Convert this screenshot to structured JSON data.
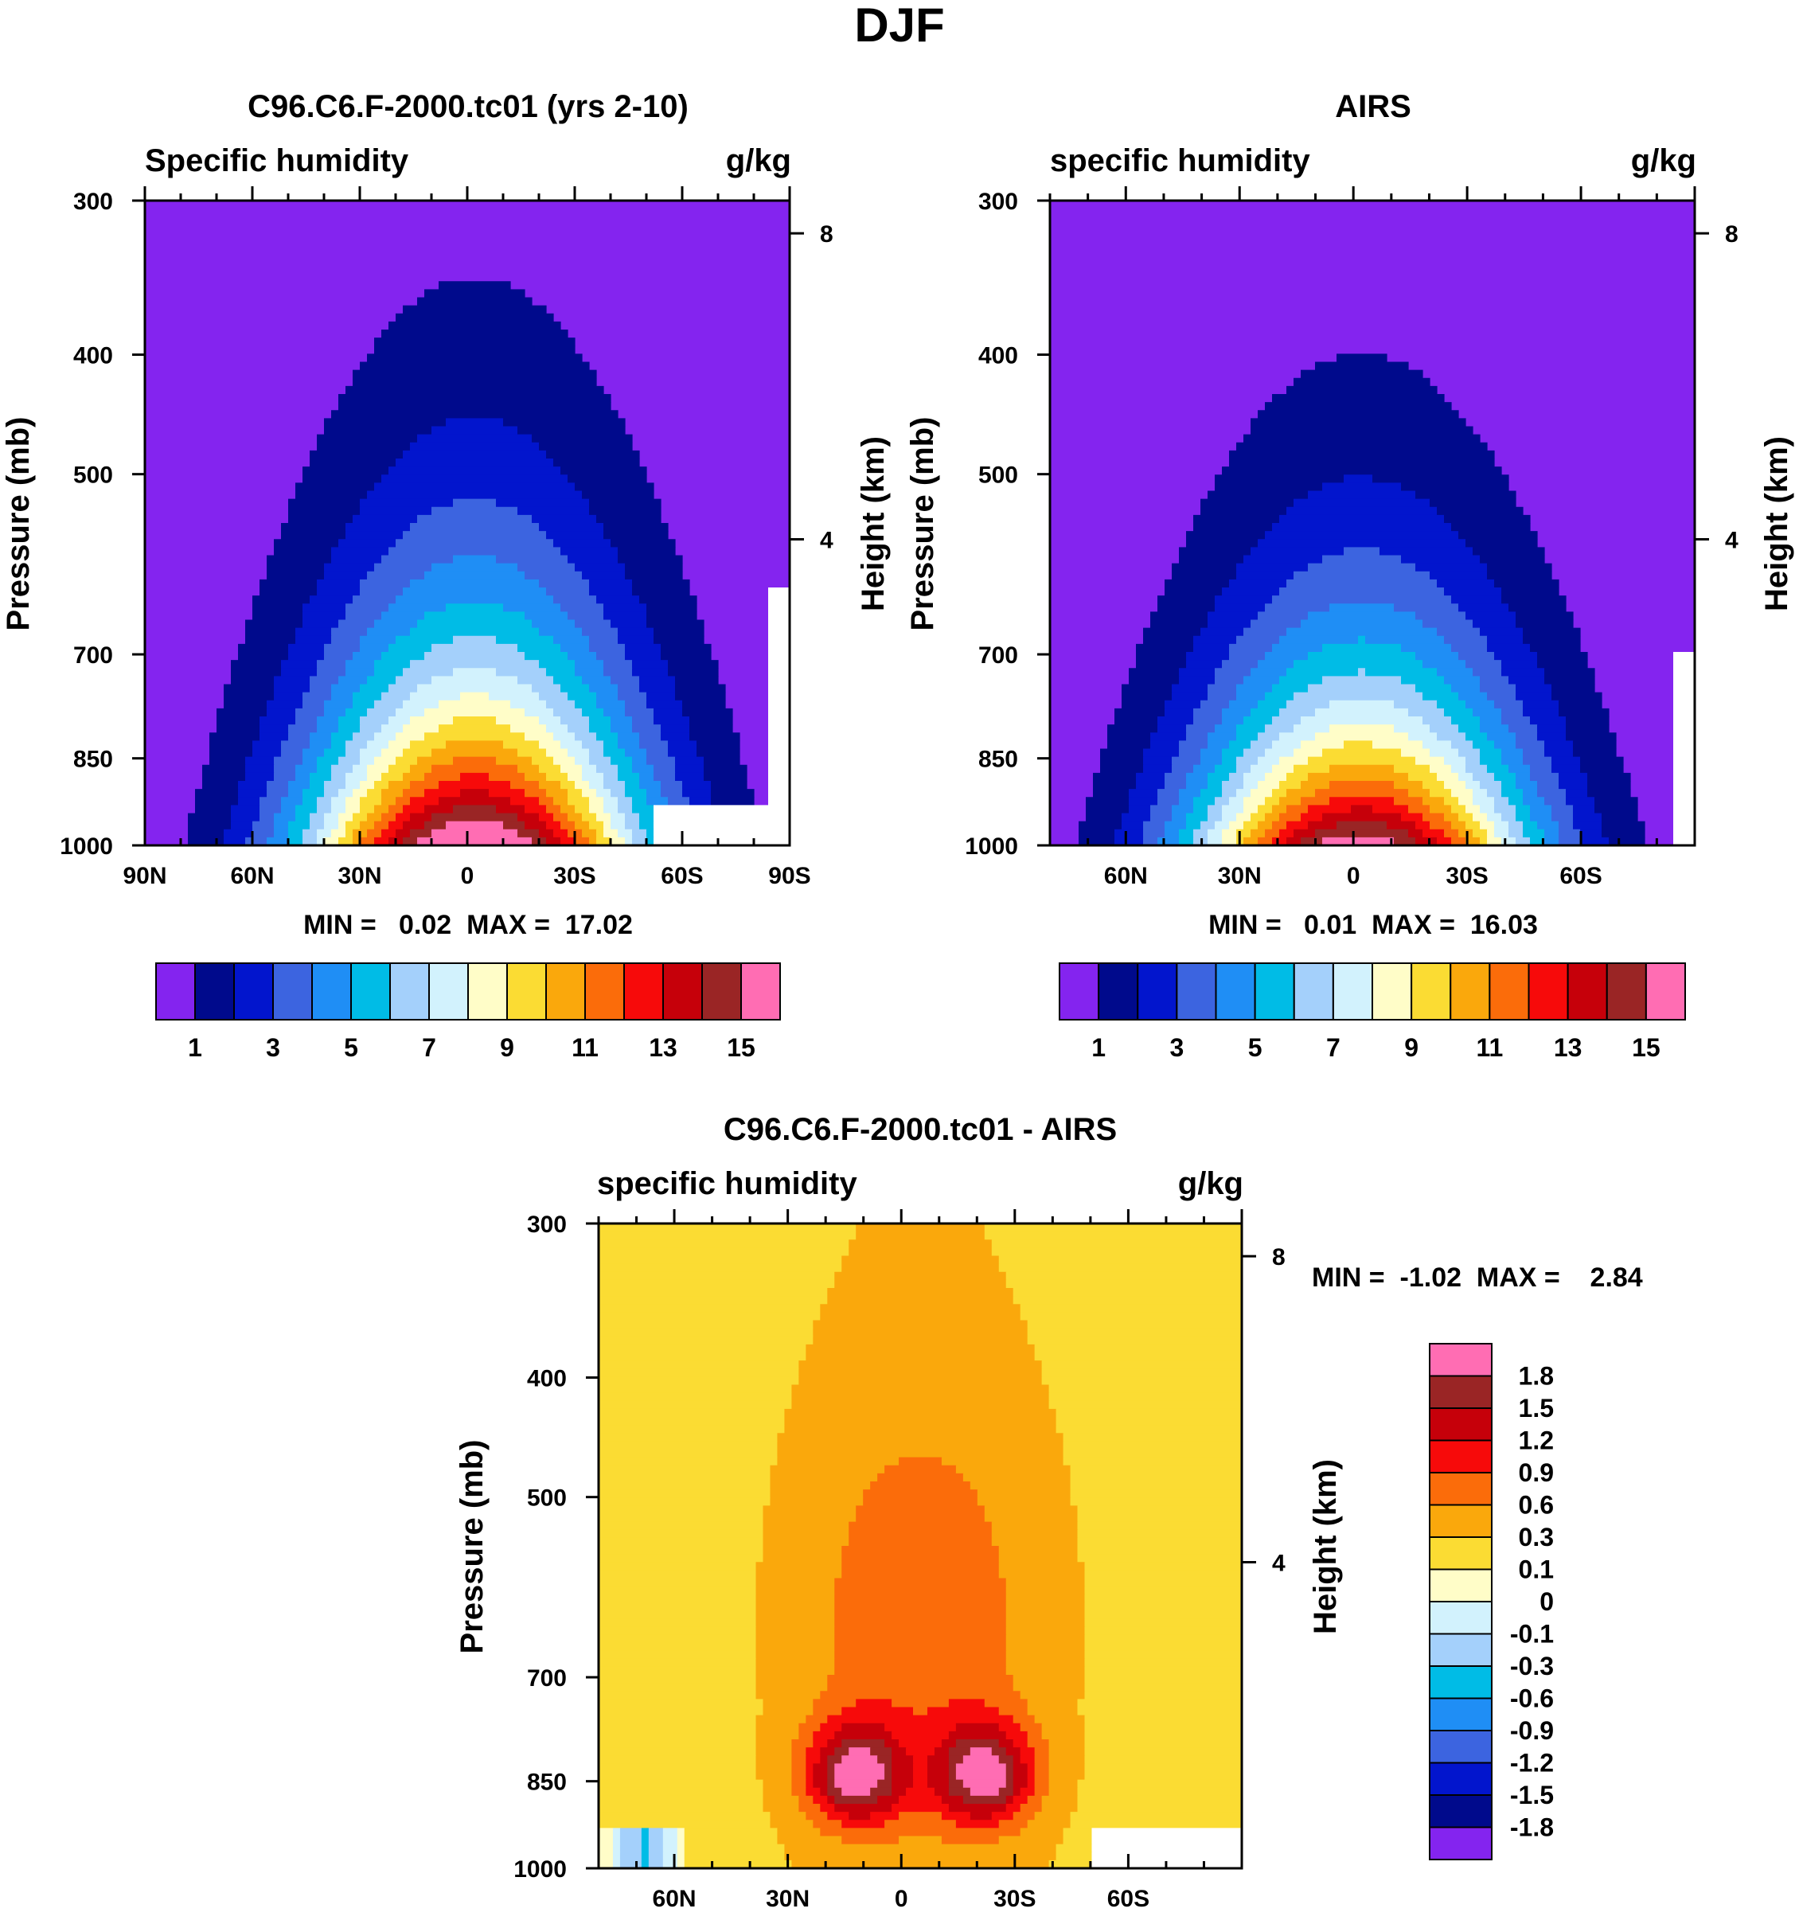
{
  "page": {
    "title": "DJF"
  },
  "colors": {
    "abs_levels": [
      "#8424ef",
      "#000a8c",
      "#0215cd",
      "#3c64e0",
      "#1f8ef5",
      "#00bce6",
      "#a4d0fb",
      "#d2f2fd",
      "#fffdc8",
      "#fbdc33",
      "#faa80c",
      "#fb6c0a",
      "#f70a0a",
      "#c6000a",
      "#9a2525",
      "#ff6db3"
    ],
    "diff_levels": [
      "#8424ef",
      "#000a8c",
      "#0215cd",
      "#3c64e0",
      "#1f8ef5",
      "#00bce6",
      "#a4d0fb",
      "#d2f2fd",
      "#fffdc8",
      "#fbdc33",
      "#faa80c",
      "#fb6c0a",
      "#f70a0a",
      "#c6000a",
      "#9a2525",
      "#ff6db3"
    ]
  },
  "chart_data": [
    {
      "id": "model",
      "type": "heatmap",
      "title": "C96.C6.F-2000.tc01 (yrs 2-10)",
      "left_label": "Specific humidity",
      "units": "g/kg",
      "ylabel": "Pressure (mb)",
      "y2label": "Height (km)",
      "x_ticks": [
        "90N",
        "60N",
        "30N",
        "0",
        "30S",
        "60S",
        "90S"
      ],
      "x_tick_lats": [
        90,
        60,
        30,
        0,
        -30,
        -60,
        -90
      ],
      "y_ticks": [
        "300",
        "400",
        "500",
        "700",
        "850",
        "1000"
      ],
      "y_tick_values": [
        300,
        400,
        500,
        700,
        850,
        1000
      ],
      "y2_ticks": [
        "8",
        "4"
      ],
      "y2_tick_values": [
        8,
        4
      ],
      "min_text": "MIN =   0.02  MAX =  17.02",
      "min": 0.02,
      "max": 17.02,
      "colorbar_labels": [
        "1",
        "3",
        "5",
        "7",
        "9",
        "11",
        "13",
        "15"
      ],
      "peak": 17.02,
      "peak_lat": -2,
      "scale_height_km": 2.6,
      "width_deg": 34,
      "masked_regions": [
        {
          "lat_from": -52,
          "lat_to": -90,
          "p_from": 925
        },
        {
          "lat_from": -85,
          "lat_to": -90,
          "p_from": 620
        }
      ]
    },
    {
      "id": "obs",
      "type": "heatmap",
      "title": "AIRS",
      "left_label": "specific humidity",
      "units": "g/kg",
      "ylabel": "Pressure (mb)",
      "y2label": "Height (km)",
      "x_ticks": [
        "60N",
        "30N",
        "0",
        "30S",
        "60S"
      ],
      "x_tick_lats": [
        60,
        30,
        0,
        -30,
        -60
      ],
      "y_ticks": [
        "300",
        "400",
        "500",
        "700",
        "850",
        "1000"
      ],
      "y_tick_values": [
        300,
        400,
        500,
        700,
        850,
        1000
      ],
      "y2_ticks": [
        "8",
        "4"
      ],
      "y2_tick_values": [
        8,
        4
      ],
      "min_text": "MIN =   0.01  MAX =  16.03",
      "min": 0.01,
      "max": 16.03,
      "colorbar_labels": [
        "1",
        "3",
        "5",
        "7",
        "9",
        "11",
        "13",
        "15"
      ],
      "peak": 16.03,
      "peak_lat": -2,
      "scale_height_km": 2.3,
      "width_deg": 32,
      "masked_regions": [
        {
          "lat_from": -85,
          "lat_to": -90,
          "p_from": 700
        }
      ]
    },
    {
      "id": "diff",
      "type": "heatmap",
      "title": "C96.C6.F-2000.tc01 - AIRS",
      "left_label": "specific humidity",
      "units": "g/kg",
      "ylabel": "Pressure (mb)",
      "y2label": "Height (km)",
      "x_ticks": [
        "60N",
        "30N",
        "0",
        "30S",
        "60S"
      ],
      "x_tick_lats": [
        60,
        30,
        0,
        -30,
        -60
      ],
      "y_ticks": [
        "300",
        "400",
        "500",
        "700",
        "850",
        "1000"
      ],
      "y_tick_values": [
        300,
        400,
        500,
        700,
        850,
        1000
      ],
      "y2_ticks": [
        "8",
        "4"
      ],
      "y2_tick_values": [
        8,
        4
      ],
      "min_text": "MIN =  -1.02  MAX =    2.84",
      "min": -1.02,
      "max": 2.84,
      "colorbar_labels": [
        "1.8",
        "1.5",
        "1.2",
        "0.9",
        "0.6",
        "0.3",
        "0.1",
        "0",
        "-0.1",
        "-0.3",
        "-0.6",
        "-0.9",
        "-1.2",
        "-1.5",
        "-1.8"
      ],
      "levels": [
        -1.8,
        -1.5,
        -1.2,
        -0.9,
        -0.6,
        -0.3,
        -0.1,
        0,
        0.1,
        0.3,
        0.6,
        0.9,
        1.2,
        1.5,
        1.8
      ],
      "blobs": [
        {
          "lat": 12,
          "p": 840,
          "amp": 1.6,
          "dlat": 9,
          "dp": 55
        },
        {
          "lat": -22,
          "p": 840,
          "amp": 1.6,
          "dlat": 9,
          "dp": 55
        }
      ],
      "masked_regions": [
        {
          "lat_from": -50,
          "lat_to": -90,
          "p_from": 925
        }
      ]
    }
  ]
}
